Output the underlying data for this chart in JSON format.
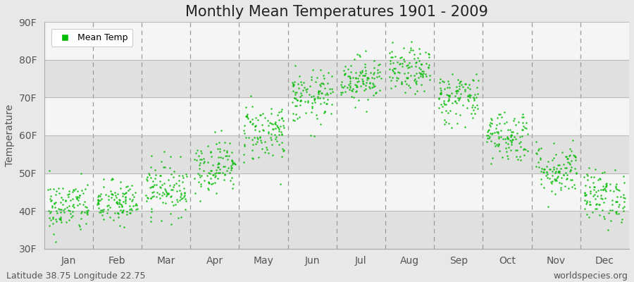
{
  "title": "Monthly Mean Temperatures 1901 - 2009",
  "ylabel": "Temperature",
  "xlabel_labels": [
    "Jan",
    "Feb",
    "Mar",
    "Apr",
    "May",
    "Jun",
    "Jul",
    "Aug",
    "Sep",
    "Oct",
    "Nov",
    "Dec"
  ],
  "ytick_labels": [
    "30F",
    "40F",
    "50F",
    "60F",
    "70F",
    "80F",
    "90F"
  ],
  "ytick_values": [
    30,
    40,
    50,
    60,
    70,
    80,
    90
  ],
  "ylim": [
    30,
    90
  ],
  "dot_color": "#00BB00",
  "background_color": "#e8e8e8",
  "band_color_light": "#f5f5f5",
  "band_color_dark": "#e0e0e0",
  "grid_color": "#bbbbbb",
  "vline_color": "#999999",
  "legend_label": "Mean Temp",
  "footnote_left": "Latitude 38.75 Longitude 22.75",
  "footnote_right": "worldspecies.org",
  "title_fontsize": 15,
  "axis_fontsize": 10,
  "tick_fontsize": 10,
  "footnote_fontsize": 9,
  "mean_temps_F": [
    41,
    42,
    46,
    52,
    61,
    70,
    75,
    77,
    70,
    60,
    51,
    44
  ],
  "spread": [
    3.5,
    3.0,
    3.5,
    3.5,
    4.0,
    3.5,
    3.0,
    3.0,
    3.5,
    3.5,
    3.5,
    3.5
  ],
  "n_years": 109
}
